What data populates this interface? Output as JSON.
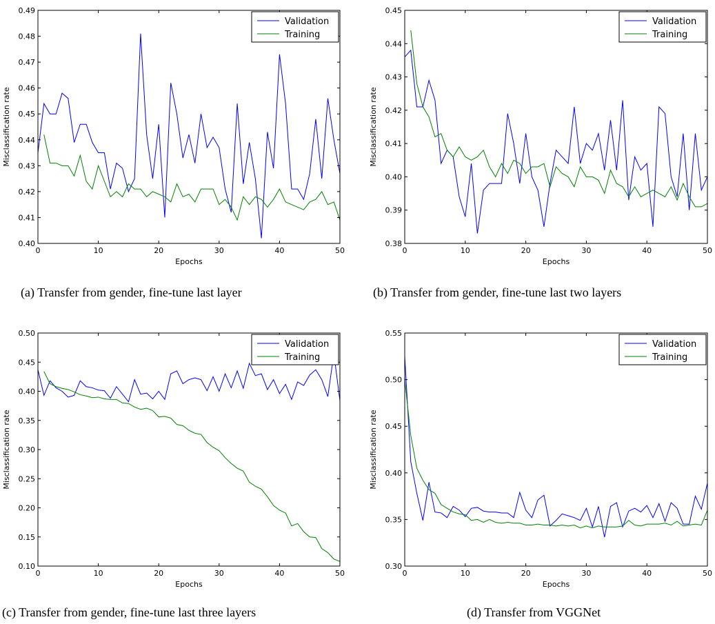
{
  "chart_data": [
    {
      "type": "line",
      "caption": "(a) Transfer from gender, fine-tune last layer",
      "xlabel": "Epochs",
      "ylabel": "Misclassification rate",
      "xlim": [
        0,
        50
      ],
      "ylim": [
        0.4,
        0.49
      ],
      "xticks": [
        0,
        10,
        20,
        30,
        40,
        50
      ],
      "yticks": [
        0.4,
        0.41,
        0.42,
        0.43,
        0.44,
        0.45,
        0.46,
        0.47,
        0.48,
        0.49
      ],
      "ytick_decimals": 2,
      "legend": "top-right",
      "grid": false,
      "series": [
        {
          "name": "Validation",
          "color": "#0000ff",
          "x_start": 0,
          "values": [
            0.435,
            0.454,
            0.45,
            0.45,
            0.458,
            0.456,
            0.439,
            0.446,
            0.446,
            0.439,
            0.435,
            0.435,
            0.421,
            0.431,
            0.429,
            0.42,
            0.425,
            0.481,
            0.442,
            0.425,
            0.446,
            0.41,
            0.462,
            0.45,
            0.433,
            0.442,
            0.431,
            0.45,
            0.437,
            0.441,
            0.437,
            0.421,
            0.412,
            0.454,
            0.423,
            0.439,
            0.425,
            0.402,
            0.443,
            0.429,
            0.473,
            0.454,
            0.421,
            0.421,
            0.417,
            0.427,
            0.448,
            0.425,
            0.456,
            0.44,
            0.427
          ]
        },
        {
          "name": "Training",
          "color": "#008000",
          "x_start": 1,
          "values": [
            0.442,
            0.431,
            0.431,
            0.43,
            0.43,
            0.426,
            0.434,
            0.424,
            0.421,
            0.43,
            0.424,
            0.418,
            0.42,
            0.418,
            0.423,
            0.421,
            0.421,
            0.418,
            0.42,
            0.419,
            0.418,
            0.416,
            0.423,
            0.418,
            0.419,
            0.416,
            0.421,
            0.421,
            0.421,
            0.415,
            0.417,
            0.414,
            0.409,
            0.418,
            0.415,
            0.418,
            0.417,
            0.414,
            0.417,
            0.421,
            0.416,
            0.415,
            0.414,
            0.413,
            0.416,
            0.417,
            0.42,
            0.415,
            0.416,
            0.409
          ]
        }
      ]
    },
    {
      "type": "line",
      "caption": "(b) Transfer from gender, fine-tune last two layers",
      "xlabel": "Epochs",
      "ylabel": "Misclassification rate",
      "xlim": [
        0,
        50
      ],
      "ylim": [
        0.38,
        0.45
      ],
      "xticks": [
        0,
        10,
        20,
        30,
        40,
        50
      ],
      "yticks": [
        0.38,
        0.39,
        0.4,
        0.41,
        0.42,
        0.43,
        0.44,
        0.45
      ],
      "ytick_decimals": 2,
      "legend": "top-right",
      "grid": false,
      "series": [
        {
          "name": "Validation",
          "color": "#0000ff",
          "x_start": 0,
          "values": [
            0.436,
            0.438,
            0.421,
            0.421,
            0.429,
            0.423,
            0.404,
            0.408,
            0.406,
            0.394,
            0.388,
            0.404,
            0.383,
            0.396,
            0.398,
            0.398,
            0.398,
            0.419,
            0.41,
            0.398,
            0.413,
            0.4,
            0.396,
            0.385,
            0.398,
            0.408,
            0.406,
            0.404,
            0.421,
            0.404,
            0.41,
            0.408,
            0.413,
            0.402,
            0.417,
            0.402,
            0.423,
            0.393,
            0.406,
            0.402,
            0.404,
            0.385,
            0.421,
            0.419,
            0.4,
            0.394,
            0.413,
            0.39,
            0.413,
            0.396,
            0.4
          ]
        },
        {
          "name": "Training",
          "color": "#008000",
          "x_start": 1,
          "values": [
            0.444,
            0.428,
            0.421,
            0.418,
            0.412,
            0.413,
            0.408,
            0.406,
            0.409,
            0.406,
            0.405,
            0.406,
            0.408,
            0.403,
            0.4,
            0.404,
            0.401,
            0.405,
            0.404,
            0.401,
            0.403,
            0.403,
            0.404,
            0.397,
            0.403,
            0.401,
            0.4,
            0.397,
            0.403,
            0.4,
            0.4,
            0.399,
            0.395,
            0.402,
            0.398,
            0.397,
            0.394,
            0.397,
            0.394,
            0.395,
            0.396,
            0.395,
            0.394,
            0.397,
            0.393,
            0.398,
            0.394,
            0.391,
            0.391,
            0.392
          ]
        }
      ]
    },
    {
      "type": "line",
      "caption": "(c) Transfer from gender, fine-tune last three layers",
      "xlabel": "Epochs",
      "ylabel": "Misclassification rate",
      "xlim": [
        0,
        50
      ],
      "ylim": [
        0.1,
        0.5
      ],
      "xticks": [
        0,
        10,
        20,
        30,
        40,
        50
      ],
      "yticks": [
        0.1,
        0.15,
        0.2,
        0.25,
        0.3,
        0.35,
        0.4,
        0.45,
        0.5
      ],
      "ytick_decimals": 2,
      "legend": "top-right",
      "grid": false,
      "series": [
        {
          "name": "Validation",
          "color": "#0000ff",
          "x_start": 0,
          "values": [
            0.437,
            0.393,
            0.418,
            0.406,
            0.4,
            0.39,
            0.393,
            0.418,
            0.408,
            0.406,
            0.402,
            0.401,
            0.388,
            0.408,
            0.395,
            0.382,
            0.42,
            0.395,
            0.397,
            0.387,
            0.4,
            0.386,
            0.43,
            0.435,
            0.413,
            0.42,
            0.423,
            0.42,
            0.401,
            0.425,
            0.4,
            0.43,
            0.406,
            0.435,
            0.405,
            0.448,
            0.427,
            0.43,
            0.403,
            0.42,
            0.396,
            0.412,
            0.386,
            0.416,
            0.41,
            0.428,
            0.437,
            0.42,
            0.391,
            0.465,
            0.384
          ]
        },
        {
          "name": "Training",
          "color": "#008000",
          "x_start": 1,
          "values": [
            0.434,
            0.413,
            0.408,
            0.405,
            0.403,
            0.399,
            0.394,
            0.392,
            0.389,
            0.39,
            0.387,
            0.386,
            0.386,
            0.38,
            0.379,
            0.373,
            0.369,
            0.371,
            0.367,
            0.356,
            0.357,
            0.354,
            0.343,
            0.341,
            0.333,
            0.328,
            0.326,
            0.312,
            0.304,
            0.298,
            0.286,
            0.276,
            0.268,
            0.263,
            0.244,
            0.237,
            0.232,
            0.219,
            0.204,
            0.196,
            0.191,
            0.169,
            0.173,
            0.159,
            0.15,
            0.149,
            0.13,
            0.123,
            0.112,
            0.108,
            0.1
          ]
        }
      ]
    },
    {
      "type": "line",
      "caption": "(d) Transfer from VGGNet",
      "xlabel": "Epochs",
      "ylabel": "Misclassification rate",
      "xlim": [
        0,
        50
      ],
      "ylim": [
        0.3,
        0.55
      ],
      "xticks": [
        0,
        10,
        20,
        30,
        40,
        50
      ],
      "yticks": [
        0.3,
        0.35,
        0.4,
        0.45,
        0.5,
        0.55
      ],
      "ytick_decimals": 2,
      "legend": "top-right",
      "grid": false,
      "series": [
        {
          "name": "Validation",
          "color": "#0000ff",
          "x_start": 0,
          "values": [
            0.525,
            0.412,
            0.378,
            0.349,
            0.39,
            0.358,
            0.357,
            0.352,
            0.364,
            0.36,
            0.353,
            0.362,
            0.363,
            0.359,
            0.358,
            0.358,
            0.357,
            0.357,
            0.352,
            0.379,
            0.36,
            0.352,
            0.371,
            0.376,
            0.343,
            0.349,
            0.356,
            0.354,
            0.352,
            0.349,
            0.362,
            0.342,
            0.364,
            0.331,
            0.364,
            0.368,
            0.342,
            0.359,
            0.362,
            0.358,
            0.365,
            0.352,
            0.367,
            0.348,
            0.368,
            0.362,
            0.345,
            0.345,
            0.375,
            0.361,
            0.389
          ]
        },
        {
          "name": "Training",
          "color": "#008000",
          "x_start": 0,
          "values": [
            0.5,
            0.44,
            0.405,
            0.392,
            0.382,
            0.378,
            0.366,
            0.362,
            0.358,
            0.356,
            0.355,
            0.349,
            0.35,
            0.347,
            0.35,
            0.347,
            0.346,
            0.347,
            0.346,
            0.346,
            0.344,
            0.344,
            0.345,
            0.344,
            0.344,
            0.343,
            0.344,
            0.343,
            0.344,
            0.341,
            0.343,
            0.341,
            0.343,
            0.342,
            0.342,
            0.342,
            0.343,
            0.349,
            0.344,
            0.343,
            0.345,
            0.345,
            0.345,
            0.346,
            0.344,
            0.348,
            0.343,
            0.344,
            0.345,
            0.344,
            0.36
          ]
        }
      ]
    }
  ]
}
